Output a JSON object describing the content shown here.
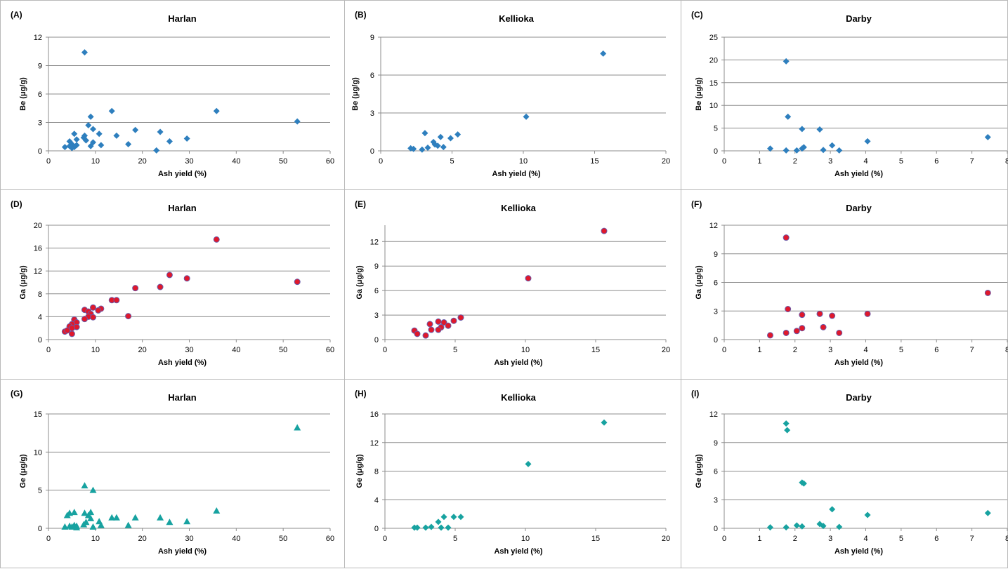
{
  "colors": {
    "blue": "#2e7fbe",
    "red": "#e0182b",
    "redStroke": "#6a5aa8",
    "teal": "#17a2a0",
    "grid": "#8c8c8c",
    "axis": "#8c8c8c"
  },
  "chart_data": [
    {
      "panel": "(A)",
      "title": "Harlan",
      "type": "scatter",
      "marker": "diamond",
      "color": "#2e7fbe",
      "xlabel": "Ash yield (%)",
      "ylabel": "Be (μg/g)",
      "xlim": [
        0,
        60
      ],
      "xticks": [
        0,
        10,
        20,
        30,
        40,
        50,
        60
      ],
      "ylim": [
        0,
        12
      ],
      "yticks": [
        0,
        3,
        6,
        9,
        12
      ],
      "points": [
        [
          7.7,
          10.4
        ],
        [
          13.5,
          4.2
        ],
        [
          35.8,
          4.2
        ],
        [
          9,
          3.6
        ],
        [
          53,
          3.1
        ],
        [
          8.5,
          2.7
        ],
        [
          9.5,
          2.3
        ],
        [
          18.5,
          2.2
        ],
        [
          23.8,
          2.0
        ],
        [
          5.5,
          1.8
        ],
        [
          10.8,
          1.8
        ],
        [
          7.7,
          1.6
        ],
        [
          14.5,
          1.6
        ],
        [
          7.5,
          1.4
        ],
        [
          29.5,
          1.3
        ],
        [
          6,
          1.2
        ],
        [
          8,
          1.1
        ],
        [
          4.5,
          1.0
        ],
        [
          9.5,
          0.9
        ],
        [
          25.8,
          1.0
        ],
        [
          5,
          0.7
        ],
        [
          17,
          0.7
        ],
        [
          6,
          0.6
        ],
        [
          11.2,
          0.6
        ],
        [
          3.5,
          0.4
        ],
        [
          5.5,
          0.4
        ],
        [
          9,
          0.5
        ],
        [
          5,
          0.3
        ],
        [
          4.5,
          0.5
        ],
        [
          23,
          0.05
        ]
      ]
    },
    {
      "panel": "(B)",
      "title": "Kellioka",
      "type": "scatter",
      "marker": "diamond",
      "color": "#2e7fbe",
      "xlabel": "Ash yield (%)",
      "ylabel": "Be (μg/g)",
      "xlim": [
        0,
        20
      ],
      "xticks": [
        0,
        5,
        10,
        15,
        20
      ],
      "ylim": [
        0,
        9
      ],
      "yticks": [
        0,
        3,
        6,
        9
      ],
      "points": [
        [
          15.6,
          7.7
        ],
        [
          10.2,
          2.7
        ],
        [
          3.1,
          1.4
        ],
        [
          5.4,
          1.3
        ],
        [
          4.2,
          1.1
        ],
        [
          4.9,
          1.0
        ],
        [
          3.7,
          0.7
        ],
        [
          3.8,
          0.5
        ],
        [
          4.0,
          0.4
        ],
        [
          4.4,
          0.3
        ],
        [
          3.3,
          0.25
        ],
        [
          2.9,
          0.1
        ],
        [
          2.3,
          0.15
        ],
        [
          2.1,
          0.2
        ]
      ]
    },
    {
      "panel": "(C)",
      "title": "Darby",
      "type": "scatter",
      "marker": "diamond",
      "color": "#2e7fbe",
      "xlabel": "Ash yield (%)",
      "ylabel": "Be (μg/g)",
      "xlim": [
        0,
        8
      ],
      "xticks": [
        0,
        1,
        2,
        3,
        4,
        5,
        6,
        7,
        8
      ],
      "ylim": [
        0,
        25
      ],
      "yticks": [
        0,
        5,
        10,
        15,
        20,
        25
      ],
      "points": [
        [
          1.75,
          19.7
        ],
        [
          1.8,
          7.5
        ],
        [
          2.2,
          4.8
        ],
        [
          2.7,
          4.7
        ],
        [
          7.45,
          3.0
        ],
        [
          4.05,
          2.1
        ],
        [
          3.05,
          1.2
        ],
        [
          2.25,
          0.8
        ],
        [
          2.2,
          0.5
        ],
        [
          1.3,
          0.5
        ],
        [
          1.75,
          0.1
        ],
        [
          2.05,
          0.1
        ],
        [
          2.8,
          0.2
        ],
        [
          3.25,
          0.1
        ]
      ]
    },
    {
      "panel": "(D)",
      "title": "Harlan",
      "type": "scatter",
      "marker": "circle",
      "color": "#e0182b",
      "xlabel": "Ash yield (%)",
      "ylabel": "Ga (μg/g)",
      "xlim": [
        0,
        60
      ],
      "xticks": [
        0,
        10,
        20,
        30,
        40,
        50,
        60
      ],
      "ylim": [
        0,
        20
      ],
      "yticks": [
        0,
        4,
        8,
        12,
        16,
        20
      ],
      "points": [
        [
          35.8,
          17.5
        ],
        [
          25.8,
          11.3
        ],
        [
          29.5,
          10.7
        ],
        [
          53,
          10.1
        ],
        [
          23.8,
          9.2
        ],
        [
          18.5,
          9.0
        ],
        [
          13.5,
          6.9
        ],
        [
          14.5,
          6.9
        ],
        [
          9.5,
          5.6
        ],
        [
          11.2,
          5.4
        ],
        [
          7.7,
          5.2
        ],
        [
          10.6,
          5.1
        ],
        [
          8.5,
          4.9
        ],
        [
          9,
          4.5
        ],
        [
          17,
          4.1
        ],
        [
          8.5,
          4.0
        ],
        [
          9.5,
          3.9
        ],
        [
          7.7,
          3.6
        ],
        [
          5.5,
          3.5
        ],
        [
          6,
          3.0
        ],
        [
          5,
          2.7
        ],
        [
          4.5,
          2.3
        ],
        [
          6,
          2.2
        ],
        [
          5,
          2.0
        ],
        [
          3.5,
          1.4
        ],
        [
          4,
          1.6
        ],
        [
          5,
          1.0
        ]
      ]
    },
    {
      "panel": "(E)",
      "title": "Kellioka",
      "type": "scatter",
      "marker": "circle",
      "color": "#e0182b",
      "xlabel": "Ash yield (%)",
      "ylabel": "Ga (μg/g)",
      "xlim": [
        0,
        20
      ],
      "xticks": [
        0,
        5,
        10,
        15,
        20
      ],
      "ylim": [
        0,
        14
      ],
      "yticks": [
        0,
        3,
        6,
        9,
        12
      ],
      "points": [
        [
          15.6,
          13.3
        ],
        [
          10.2,
          7.5
        ],
        [
          5.4,
          2.7
        ],
        [
          4.9,
          2.3
        ],
        [
          3.8,
          2.2
        ],
        [
          4.2,
          2.1
        ],
        [
          3.2,
          1.9
        ],
        [
          4.5,
          1.7
        ],
        [
          4.0,
          1.5
        ],
        [
          3.8,
          1.2
        ],
        [
          3.3,
          1.2
        ],
        [
          2.1,
          1.1
        ],
        [
          2.3,
          0.7
        ],
        [
          2.9,
          0.5
        ]
      ]
    },
    {
      "panel": "(F)",
      "title": "Darby",
      "type": "scatter",
      "marker": "circle",
      "color": "#e0182b",
      "xlabel": "Ash yield (%)",
      "ylabel": "Ga (μg/g)",
      "xlim": [
        0,
        8
      ],
      "xticks": [
        0,
        1,
        2,
        3,
        4,
        5,
        6,
        7,
        8
      ],
      "ylim": [
        0,
        12
      ],
      "yticks": [
        0,
        3,
        6,
        9,
        12
      ],
      "points": [
        [
          1.75,
          10.7
        ],
        [
          7.45,
          4.9
        ],
        [
          1.8,
          3.2
        ],
        [
          4.05,
          2.7
        ],
        [
          2.7,
          2.7
        ],
        [
          2.2,
          2.6
        ],
        [
          3.05,
          2.5
        ],
        [
          2.8,
          1.3
        ],
        [
          2.2,
          1.2
        ],
        [
          2.05,
          0.9
        ],
        [
          1.75,
          0.7
        ],
        [
          3.25,
          0.7
        ],
        [
          1.3,
          0.45
        ]
      ]
    },
    {
      "panel": "(G)",
      "title": "Harlan",
      "type": "scatter",
      "marker": "triangle",
      "color": "#17a2a0",
      "xlabel": "Ash yield (%)",
      "ylabel": "Ge (μg/g)",
      "xlim": [
        0,
        60
      ],
      "xticks": [
        0,
        10,
        20,
        30,
        40,
        50,
        60
      ],
      "ylim": [
        0,
        15
      ],
      "yticks": [
        0,
        5,
        10,
        15
      ],
      "points": [
        [
          53,
          13.2
        ],
        [
          7.7,
          5.6
        ],
        [
          9.5,
          5.0
        ],
        [
          35.8,
          2.3
        ],
        [
          4.5,
          2.0
        ],
        [
          5.5,
          2.1
        ],
        [
          7.7,
          2.0
        ],
        [
          8.5,
          1.7
        ],
        [
          9,
          2.1
        ],
        [
          13.5,
          1.4
        ],
        [
          14.5,
          1.4
        ],
        [
          18.5,
          1.4
        ],
        [
          23.8,
          1.4
        ],
        [
          4,
          1.7
        ],
        [
          10.8,
          0.9
        ],
        [
          9,
          1.3
        ],
        [
          29.5,
          0.9
        ],
        [
          25.8,
          0.8
        ],
        [
          8,
          0.8
        ],
        [
          7.5,
          0.5
        ],
        [
          17,
          0.4
        ],
        [
          11.2,
          0.4
        ],
        [
          4.5,
          0.3
        ],
        [
          3.5,
          0.2
        ],
        [
          5,
          0.2
        ],
        [
          5.5,
          0.4
        ],
        [
          6,
          0.3
        ],
        [
          9.5,
          0.2
        ],
        [
          6,
          0.1
        ]
      ]
    },
    {
      "panel": "(H)",
      "title": "Kellioka",
      "type": "scatter",
      "marker": "diamond",
      "color": "#17a2a0",
      "xlabel": "Ash yield (%)",
      "ylabel": "Ge (μg/g)",
      "xlim": [
        0,
        20
      ],
      "xticks": [
        0,
        5,
        10,
        15,
        20
      ],
      "ylim": [
        0,
        16
      ],
      "yticks": [
        0,
        4,
        8,
        12,
        16
      ],
      "points": [
        [
          15.6,
          14.8
        ],
        [
          10.2,
          9.0
        ],
        [
          5.4,
          1.6
        ],
        [
          4.9,
          1.6
        ],
        [
          4.2,
          1.6
        ],
        [
          3.8,
          0.9
        ],
        [
          2.1,
          0.1
        ],
        [
          2.3,
          0.1
        ],
        [
          2.9,
          0.1
        ],
        [
          3.3,
          0.2
        ],
        [
          4.0,
          0.1
        ],
        [
          4.5,
          0.1
        ]
      ]
    },
    {
      "panel": "(I)",
      "title": "Darby",
      "type": "scatter",
      "marker": "diamond",
      "color": "#17a2a0",
      "xlabel": "Ash yield (%)",
      "ylabel": "Ge (μg/g)",
      "xlim": [
        0,
        8
      ],
      "xticks": [
        0,
        1,
        2,
        3,
        4,
        5,
        6,
        7,
        8
      ],
      "ylim": [
        0,
        12
      ],
      "yticks": [
        0,
        3,
        6,
        9,
        12
      ],
      "points": [
        [
          1.75,
          11.0
        ],
        [
          1.78,
          10.3
        ],
        [
          2.2,
          4.8
        ],
        [
          2.25,
          4.7
        ],
        [
          3.05,
          2.0
        ],
        [
          7.45,
          1.6
        ],
        [
          4.05,
          1.4
        ],
        [
          2.7,
          0.45
        ],
        [
          2.05,
          0.3
        ],
        [
          2.8,
          0.25
        ],
        [
          2.2,
          0.2
        ],
        [
          1.3,
          0.1
        ],
        [
          1.75,
          0.1
        ],
        [
          3.25,
          0.15
        ]
      ]
    }
  ]
}
